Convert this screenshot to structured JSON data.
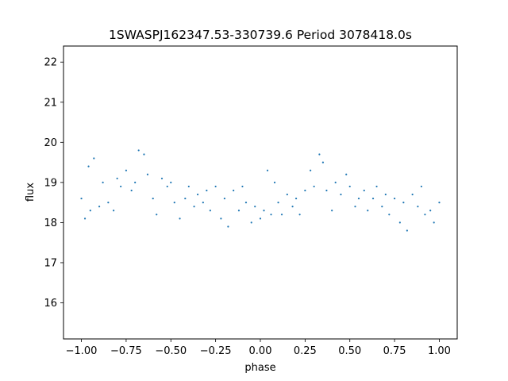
{
  "chart_data": {
    "type": "scatter",
    "title": "1SWASPJ162347.53-330739.6 Period 3078418.0s",
    "xlabel": "phase",
    "ylabel": "flux",
    "xlim": [
      -1.1,
      1.1
    ],
    "ylim": [
      15.1,
      22.4
    ],
    "x_ticks": [
      -1.0,
      -0.75,
      -0.5,
      -0.25,
      0.0,
      0.25,
      0.5,
      0.75,
      1.0
    ],
    "x_tick_labels": [
      "−1.00",
      "−0.75",
      "−0.50",
      "−0.25",
      "0.00",
      "0.25",
      "0.50",
      "0.75",
      "1.00"
    ],
    "y_ticks": [
      16,
      17,
      18,
      19,
      20,
      21,
      22
    ],
    "y_tick_labels": [
      "16",
      "17",
      "18",
      "19",
      "20",
      "21",
      "22"
    ],
    "grid": false,
    "series": [
      {
        "color": "#1f77b4",
        "marker": "point",
        "points": [
          [
            -1.0,
            18.6
          ],
          [
            -0.98,
            18.1
          ],
          [
            -0.96,
            19.4
          ],
          [
            -0.95,
            18.3
          ],
          [
            -0.93,
            19.6
          ],
          [
            -0.9,
            18.4
          ],
          [
            -0.88,
            19.0
          ],
          [
            -0.85,
            18.5
          ],
          [
            -0.82,
            18.3
          ],
          [
            -0.8,
            19.1
          ],
          [
            -0.78,
            18.9
          ],
          [
            -0.75,
            19.3
          ],
          [
            -0.72,
            18.8
          ],
          [
            -0.7,
            19.0
          ],
          [
            -0.68,
            19.8
          ],
          [
            -0.65,
            19.7
          ],
          [
            -0.63,
            19.2
          ],
          [
            -0.6,
            18.6
          ],
          [
            -0.58,
            18.2
          ],
          [
            -0.55,
            19.1
          ],
          [
            -0.52,
            18.9
          ],
          [
            -0.5,
            19.0
          ],
          [
            -0.48,
            18.5
          ],
          [
            -0.45,
            18.1
          ],
          [
            -0.42,
            18.6
          ],
          [
            -0.4,
            18.9
          ],
          [
            -0.37,
            18.4
          ],
          [
            -0.35,
            18.7
          ],
          [
            -0.32,
            18.5
          ],
          [
            -0.3,
            18.8
          ],
          [
            -0.28,
            18.3
          ],
          [
            -0.25,
            18.9
          ],
          [
            -0.22,
            18.1
          ],
          [
            -0.2,
            18.6
          ],
          [
            -0.18,
            17.9
          ],
          [
            -0.15,
            18.8
          ],
          [
            -0.12,
            18.3
          ],
          [
            -0.1,
            18.9
          ],
          [
            -0.08,
            18.5
          ],
          [
            -0.05,
            18.0
          ],
          [
            -0.03,
            18.4
          ],
          [
            0.0,
            18.1
          ],
          [
            0.02,
            18.3
          ],
          [
            0.04,
            19.3
          ],
          [
            0.06,
            18.2
          ],
          [
            0.08,
            19.0
          ],
          [
            0.1,
            18.5
          ],
          [
            0.12,
            18.2
          ],
          [
            0.15,
            18.7
          ],
          [
            0.18,
            18.4
          ],
          [
            0.2,
            18.6
          ],
          [
            0.22,
            18.2
          ],
          [
            0.25,
            18.8
          ],
          [
            0.28,
            19.3
          ],
          [
            0.3,
            18.9
          ],
          [
            0.33,
            19.7
          ],
          [
            0.35,
            19.5
          ],
          [
            0.37,
            18.8
          ],
          [
            0.4,
            18.3
          ],
          [
            0.42,
            19.0
          ],
          [
            0.45,
            18.7
          ],
          [
            0.48,
            19.2
          ],
          [
            0.5,
            18.9
          ],
          [
            0.53,
            18.4
          ],
          [
            0.55,
            18.6
          ],
          [
            0.58,
            18.8
          ],
          [
            0.6,
            18.3
          ],
          [
            0.63,
            18.6
          ],
          [
            0.65,
            18.9
          ],
          [
            0.68,
            18.4
          ],
          [
            0.7,
            18.7
          ],
          [
            0.72,
            18.2
          ],
          [
            0.75,
            18.6
          ],
          [
            0.78,
            18.0
          ],
          [
            0.8,
            18.5
          ],
          [
            0.82,
            17.8
          ],
          [
            0.85,
            18.7
          ],
          [
            0.88,
            18.4
          ],
          [
            0.9,
            18.9
          ],
          [
            0.92,
            18.2
          ],
          [
            0.95,
            18.3
          ],
          [
            0.97,
            18.0
          ],
          [
            1.0,
            18.5
          ]
        ]
      }
    ]
  }
}
